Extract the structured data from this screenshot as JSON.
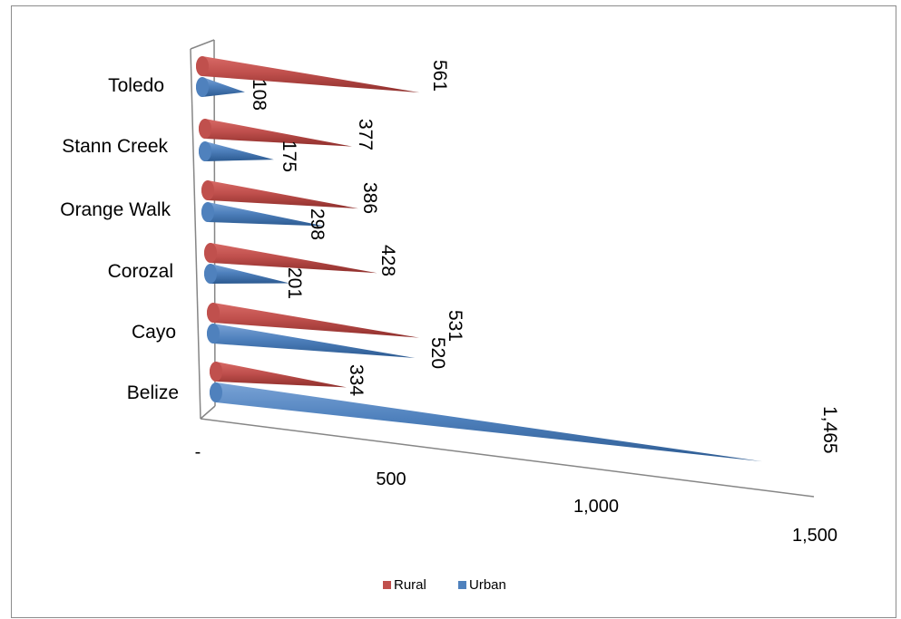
{
  "chart_data": {
    "type": "bar",
    "orientation": "horizontal",
    "style": "3d-cone",
    "categories": [
      "Belize",
      "Cayo",
      "Corozal",
      "Orange Walk",
      "Stann Creek",
      "Toledo"
    ],
    "series": [
      {
        "name": "Rural",
        "values": [
          334,
          531,
          428,
          386,
          377,
          561
        ],
        "color": "#c0504d"
      },
      {
        "name": "Urban",
        "values": [
          1465,
          520,
          201,
          298,
          175,
          108
        ],
        "color": "#4f81bd"
      }
    ],
    "data_labels": {
      "Rural": [
        "334",
        "531",
        "428",
        "386",
        "377",
        "561"
      ],
      "Urban": [
        "1,465",
        "520",
        "201",
        "298",
        "175",
        "108"
      ]
    },
    "x_ticks": [
      "-",
      "500",
      "1,000",
      "1,500"
    ],
    "xlim": [
      0,
      1500
    ],
    "legend": {
      "position": "bottom",
      "entries": [
        "Rural",
        "Urban"
      ]
    },
    "grid": false
  }
}
